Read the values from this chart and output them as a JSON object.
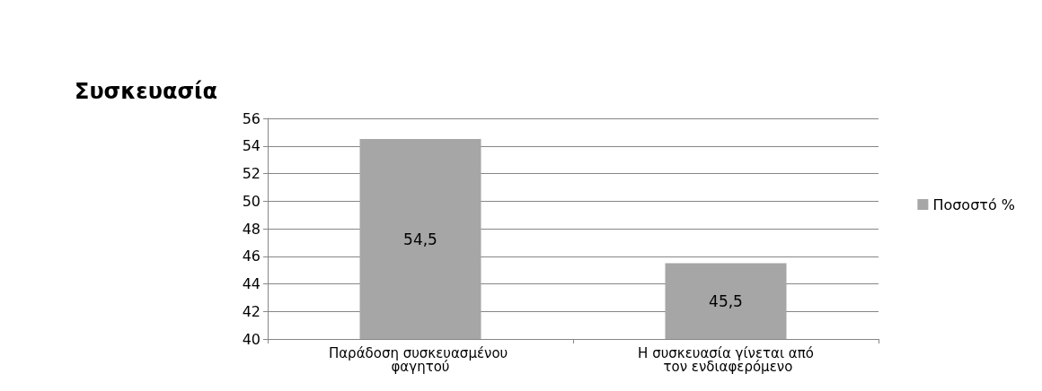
{
  "chart_data": {
    "type": "bar",
    "title": "Συσκευασία",
    "categories": [
      "Παράδοση συσκευασμένου φαγητού",
      "Η συσκευασία γίνεται από τον ενδιαφερόμενο"
    ],
    "series": [
      {
        "name": "Ποσοστό %",
        "color": "#a6a6a6",
        "values": [
          54.5,
          45.5
        ],
        "value_labels": [
          "54,5",
          "45,5"
        ]
      }
    ],
    "ylim": [
      40,
      56
    ],
    "yticks": [
      40,
      42,
      44,
      46,
      48,
      50,
      52,
      54,
      56
    ],
    "grid": "y",
    "legend": "right"
  }
}
